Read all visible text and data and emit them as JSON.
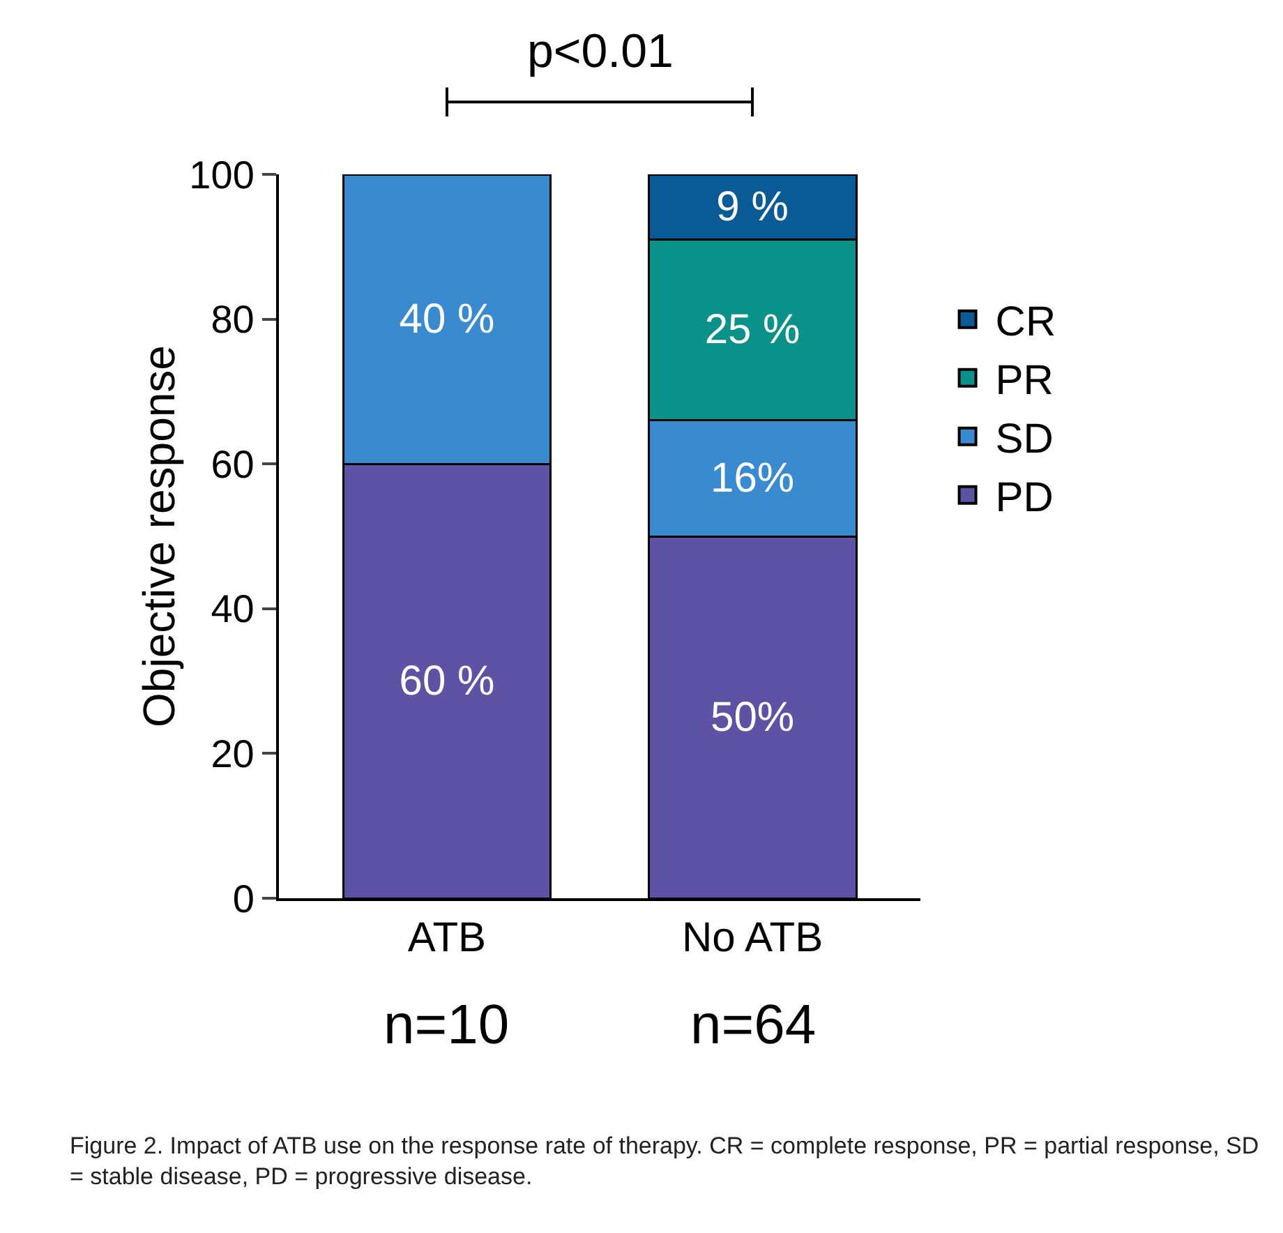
{
  "chart_data": {
    "type": "bar",
    "stacked": true,
    "ylabel": "Objective response",
    "categories": [
      "ATB",
      "No ATB"
    ],
    "series": [
      {
        "name": "PD",
        "color": "#5e52a4",
        "values": [
          60,
          50
        ],
        "value_labels": [
          "60 %",
          "50%"
        ]
      },
      {
        "name": "SD",
        "color": "#3a8ad0",
        "values": [
          40,
          16
        ],
        "value_labels": [
          "40 %",
          "16%"
        ]
      },
      {
        "name": "PR",
        "color": "#0a9189",
        "values": [
          null,
          25
        ],
        "value_labels": [
          null,
          "25 %"
        ]
      },
      {
        "name": "CR",
        "color": "#0a5a96",
        "values": [
          null,
          9
        ],
        "value_labels": [
          null,
          "9 %"
        ]
      }
    ],
    "ylim": [
      0,
      100
    ],
    "yticks": [
      0,
      20,
      40,
      60,
      80,
      100
    ],
    "grid": false,
    "legend": "right",
    "annotations": [
      "p<0.01",
      "n=10",
      "n=64",
      "Figure 2. Impact of ATB use on the response rate of therapy. CR = complete response, PR = partial response, SD = stable disease, PD = progressive disease."
    ]
  }
}
